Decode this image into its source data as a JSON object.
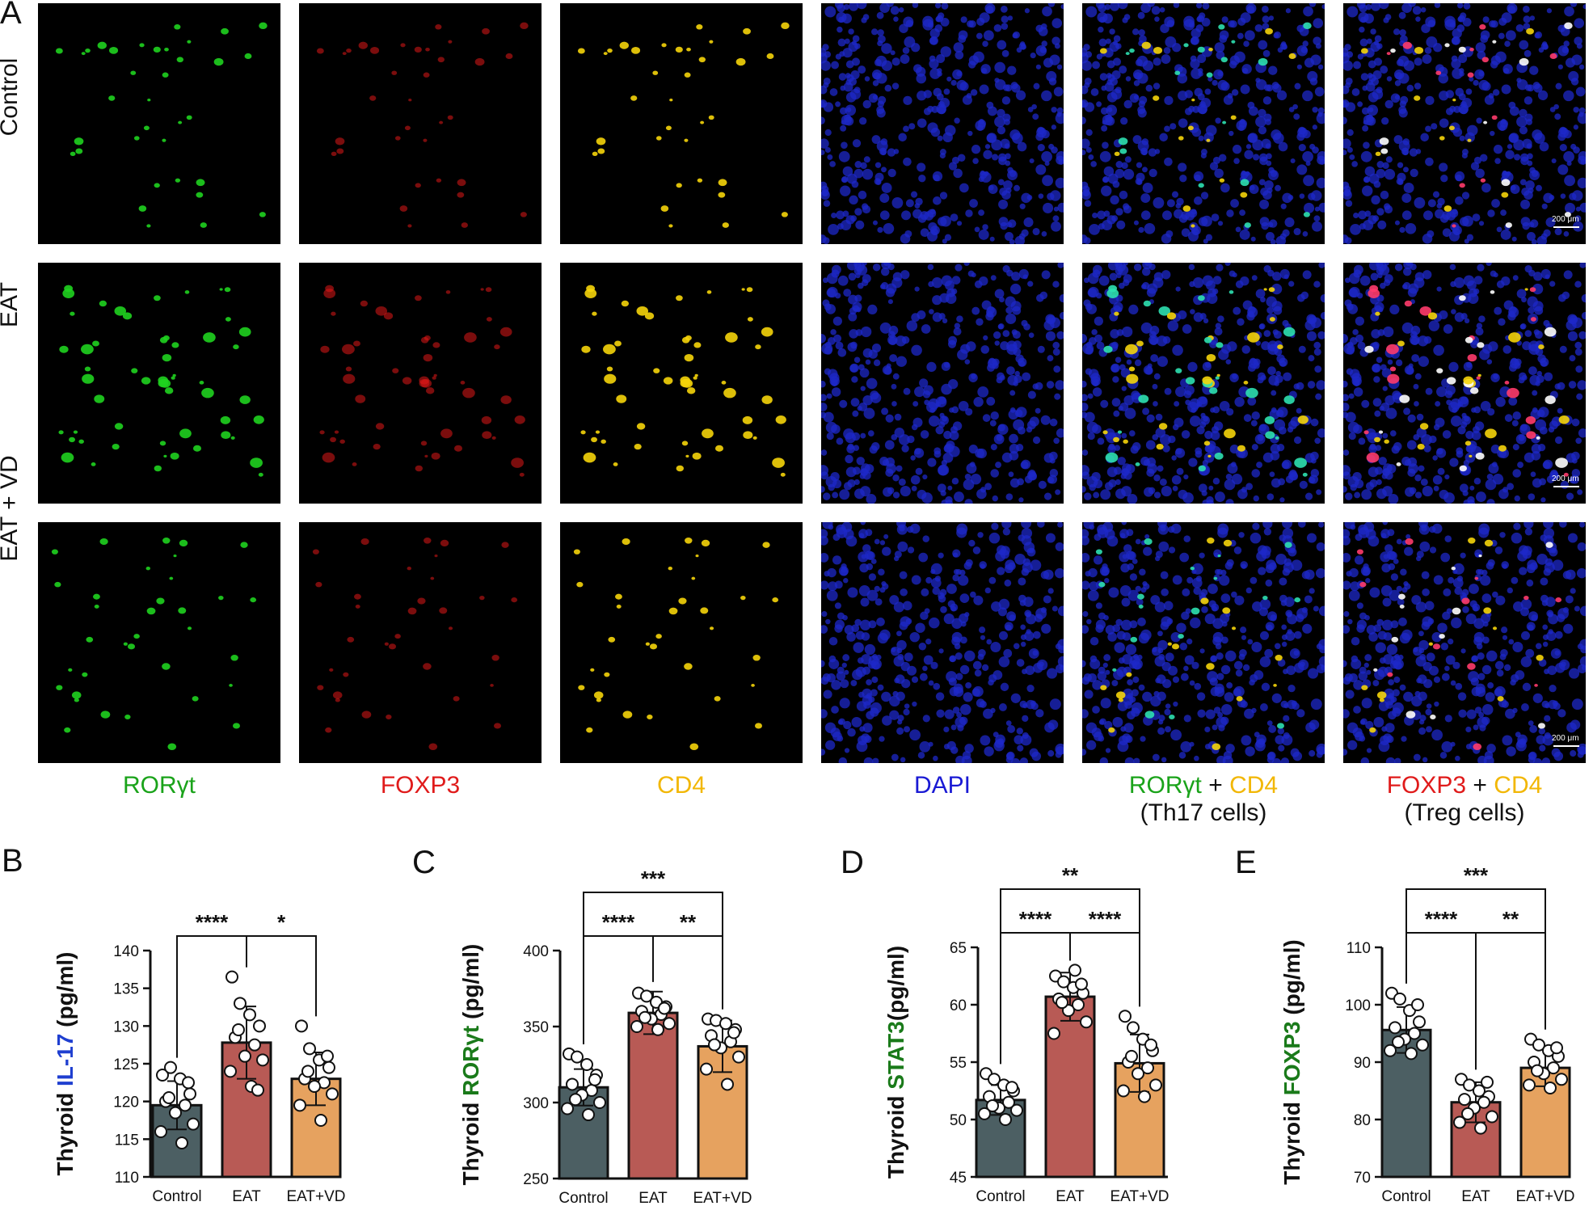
{
  "panel_A": {
    "letter": "A",
    "rows": [
      "Control",
      "EAT",
      "EAT + VD"
    ],
    "channels": [
      {
        "parts": [
          {
            "text": "RORγt",
            "color": "#1aa31a"
          }
        ],
        "sub": ""
      },
      {
        "parts": [
          {
            "text": "FOXP3",
            "color": "#e01b1b"
          }
        ],
        "sub": ""
      },
      {
        "parts": [
          {
            "text": "CD4",
            "color": "#f2b705"
          }
        ],
        "sub": ""
      },
      {
        "parts": [
          {
            "text": "DAPI",
            "color": "#1a1ad4"
          }
        ],
        "sub": ""
      },
      {
        "parts": [
          {
            "text": "RORγt",
            "color": "#1aa31a"
          },
          {
            "text": " + ",
            "color": "#111111"
          },
          {
            "text": "CD4",
            "color": "#f2b705"
          }
        ],
        "sub": "(Th17 cells)"
      },
      {
        "parts": [
          {
            "text": "FOXP3",
            "color": "#e01b1b"
          },
          {
            "text": " + ",
            "color": "#111111"
          },
          {
            "text": "CD4",
            "color": "#f2b705"
          }
        ],
        "sub": "(Treg cells)"
      }
    ],
    "scale_bar": "200 μm"
  },
  "chart_data": [
    {
      "panel": "B",
      "type": "bar",
      "ylabel_prefix": "Thyroid ",
      "ylabel_marker": "IL-17",
      "ylabel_marker_color": "#1f3fd0",
      "ylabel_suffix": " (pg/ml)",
      "categories": [
        "Control",
        "EAT",
        "EAT+VD"
      ],
      "values": [
        119.5,
        127.8,
        123.0
      ],
      "sd": [
        3.2,
        4.8,
        3.5
      ],
      "points": [
        [
          123.5,
          124.5,
          123.0,
          121.0,
          120.0,
          119.5,
          118.5,
          117.0,
          116.0,
          114.5,
          122.5,
          120.5
        ],
        [
          136.5,
          133.0,
          131.5,
          130.0,
          128.5,
          127.5,
          126.0,
          125.5,
          124.0,
          122.0,
          121.5,
          129.5
        ],
        [
          130.0,
          127.0,
          125.5,
          124.5,
          123.0,
          122.5,
          122.0,
          121.0,
          119.5,
          117.5,
          126.0,
          124.0
        ]
      ],
      "ylim": [
        110,
        140
      ],
      "yticks": [
        110,
        115,
        120,
        125,
        130,
        135,
        140
      ],
      "bar_colors": [
        "#4c5f63",
        "#b85a55",
        "#e6a25f"
      ],
      "significance": [
        {
          "from": 0,
          "to": 1,
          "label": "****"
        },
        {
          "from": 1,
          "to": 2,
          "label": "*"
        }
      ]
    },
    {
      "panel": "C",
      "type": "bar",
      "ylabel_prefix": "Thyroid ",
      "ylabel_marker": "RORγt",
      "ylabel_marker_color": "#1a7a1a",
      "ylabel_suffix": " (pg/ml)",
      "categories": [
        "Control",
        "EAT",
        "EAT+VD"
      ],
      "values": [
        310,
        359,
        337
      ],
      "sd": [
        12,
        14,
        17
      ],
      "points": [
        [
          332,
          330,
          325,
          318,
          312,
          308,
          305,
          300,
          296,
          292,
          315,
          302
        ],
        [
          372,
          370,
          366,
          363,
          360,
          358,
          355,
          352,
          350,
          348,
          362,
          356
        ],
        [
          355,
          354,
          352,
          348,
          344,
          340,
          336,
          330,
          322,
          312,
          346,
          338
        ]
      ],
      "ylim": [
        250,
        400
      ],
      "yticks": [
        250,
        300,
        350,
        400
      ],
      "bar_colors": [
        "#4c5f63",
        "#b85a55",
        "#e6a25f"
      ],
      "significance": [
        {
          "from": 0,
          "to": 1,
          "label": "****"
        },
        {
          "from": 1,
          "to": 2,
          "label": "**"
        },
        {
          "from": 0,
          "to": 2,
          "label": "***"
        }
      ]
    },
    {
      "panel": "D",
      "type": "bar",
      "ylabel_prefix": "Thyroid ",
      "ylabel_marker": "STAT3",
      "ylabel_marker_color": "#1a7a1a",
      "ylabel_suffix": "(pg/ml)",
      "categories": [
        "Control",
        "EAT",
        "EAT+VD"
      ],
      "values": [
        51.7,
        60.7,
        54.9
      ],
      "sd": [
        1.3,
        2.1,
        2.5
      ],
      "points": [
        [
          54.0,
          53.5,
          53.0,
          52.5,
          52.0,
          51.5,
          51.0,
          50.8,
          50.5,
          50.0,
          52.8,
          51.2
        ],
        [
          62.5,
          62.0,
          61.5,
          61.0,
          60.5,
          60.0,
          59.5,
          58.5,
          57.5,
          63.0,
          61.8,
          60.2
        ],
        [
          59.0,
          58.0,
          57.0,
          56.0,
          55.0,
          54.5,
          54.0,
          53.0,
          52.5,
          52.0,
          56.5,
          55.5
        ]
      ],
      "ylim": [
        45,
        65
      ],
      "yticks": [
        45,
        50,
        55,
        60,
        65
      ],
      "bar_colors": [
        "#4c5f63",
        "#b85a55",
        "#e6a25f"
      ],
      "significance": [
        {
          "from": 0,
          "to": 1,
          "label": "****"
        },
        {
          "from": 1,
          "to": 2,
          "label": "****"
        },
        {
          "from": 0,
          "to": 2,
          "label": "**"
        }
      ]
    },
    {
      "panel": "E",
      "type": "bar",
      "ylabel_prefix": "Thyroid ",
      "ylabel_marker": "FOXP3",
      "ylabel_marker_color": "#1a7a1a",
      "ylabel_suffix": " (pg/ml)",
      "categories": [
        "Control",
        "EAT",
        "EAT+VD"
      ],
      "values": [
        95.6,
        83.0,
        89.0
      ],
      "sd": [
        4.0,
        3.5,
        3.2
      ],
      "points": [
        [
          102.0,
          101.0,
          99.0,
          97.0,
          96.0,
          95.0,
          94.0,
          93.0,
          92.0,
          91.5,
          100.0,
          93.5
        ],
        [
          87.0,
          86.0,
          85.0,
          84.0,
          83.5,
          83.0,
          82.0,
          80.5,
          79.5,
          78.5,
          86.5,
          81.0
        ],
        [
          94.0,
          93.0,
          92.0,
          91.0,
          90.0,
          89.0,
          88.0,
          87.0,
          86.0,
          85.5,
          92.5,
          88.5
        ]
      ],
      "ylim": [
        70,
        110
      ],
      "yticks": [
        70,
        80,
        90,
        100,
        110
      ],
      "bar_colors": [
        "#4c5f63",
        "#b85a55",
        "#e6a25f"
      ],
      "significance": [
        {
          "from": 0,
          "to": 1,
          "label": "****"
        },
        {
          "from": 1,
          "to": 2,
          "label": "**"
        },
        {
          "from": 0,
          "to": 2,
          "label": "***"
        }
      ]
    }
  ]
}
